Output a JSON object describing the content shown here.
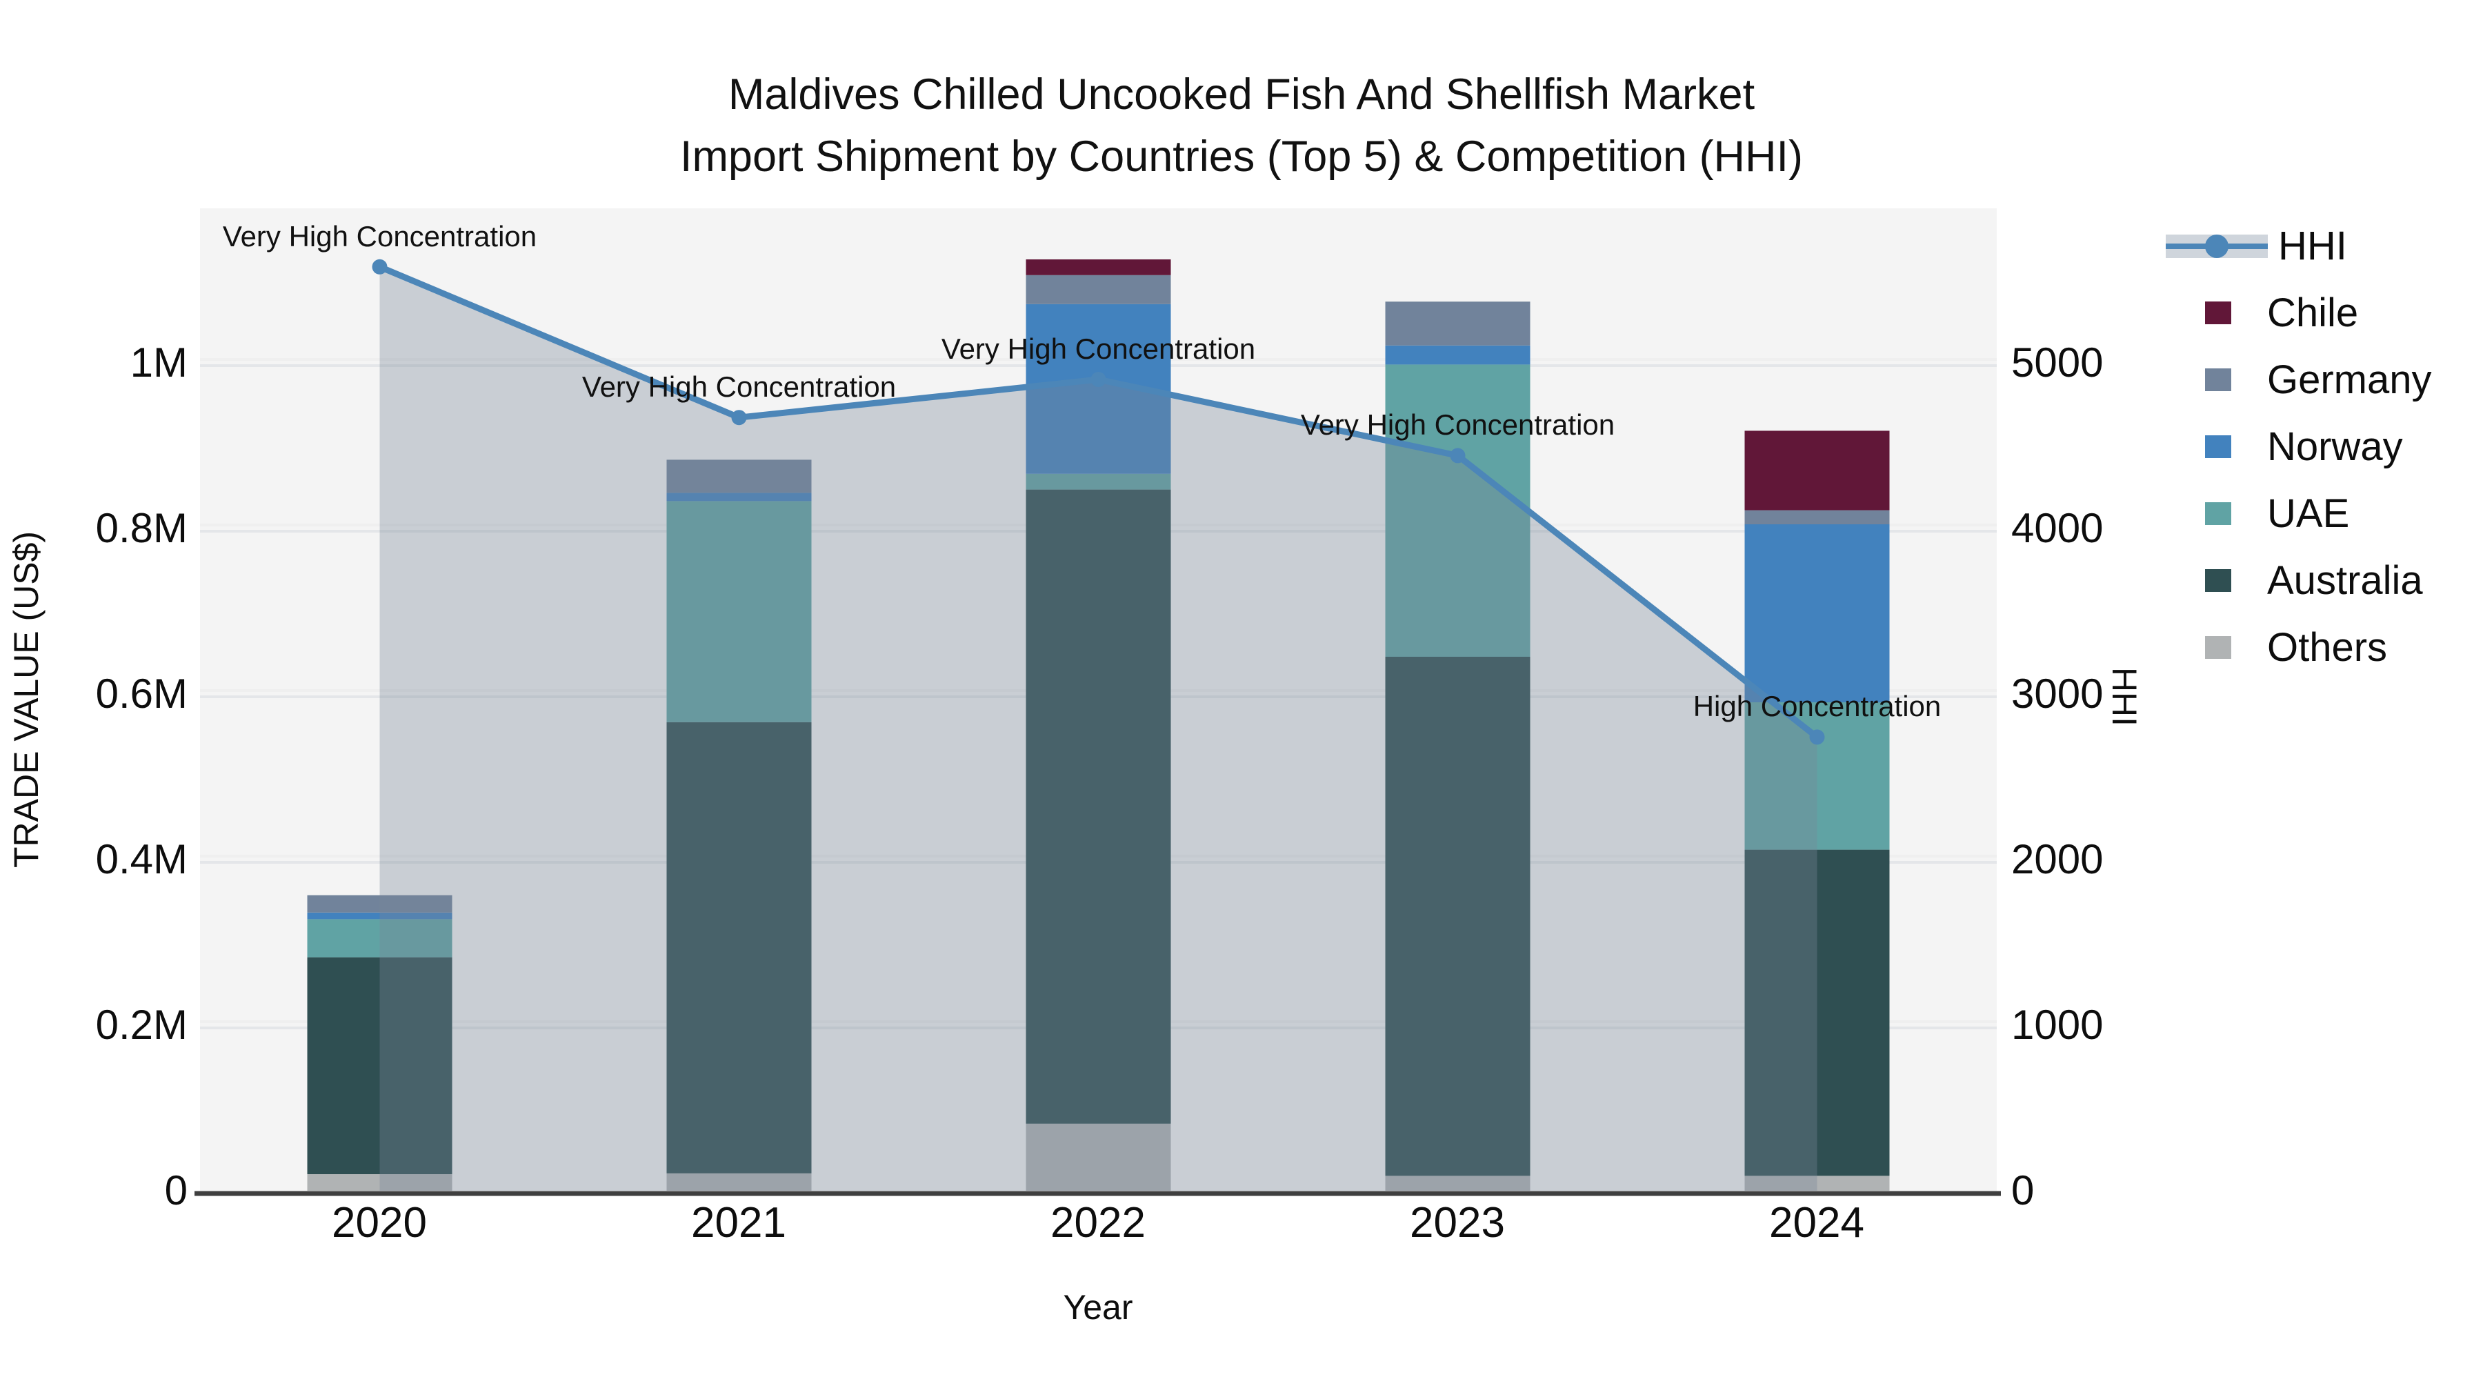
{
  "title": {
    "line1": "Maldives Chilled Uncooked Fish And Shellfish Market",
    "line2": "Import Shipment by Countries (Top 5) & Competition (HHI)"
  },
  "legend": {
    "items": [
      {
        "label": "HHI",
        "color": "#4C86B8"
      },
      {
        "label": "Chile",
        "color": "#611738"
      },
      {
        "label": "Germany",
        "color": "#71839B"
      },
      {
        "label": "Norway",
        "color": "#4282BE"
      },
      {
        "label": "UAE",
        "color": "#60A3A4"
      },
      {
        "label": "Australia",
        "color": "#2F4F52"
      },
      {
        "label": "Others",
        "color": "#B0B3B4"
      }
    ]
  },
  "annotations": [
    {
      "year": "2020",
      "text": "Very High Concentration"
    },
    {
      "year": "2021",
      "text": "Very High Concentration"
    },
    {
      "year": "2022",
      "text": "Very High Concentration"
    },
    {
      "year": "2023",
      "text": "Very High Concentration"
    },
    {
      "year": "2024",
      "text": "High Concentration"
    }
  ],
  "chart_data": {
    "type": "bar",
    "subtype": "stacked-bar-with-line",
    "title": "Maldives Chilled Uncooked Fish And Shellfish Market Import Shipment by Countries (Top 5) & Competition (HHI)",
    "categories": [
      "2020",
      "2021",
      "2022",
      "2023",
      "2024"
    ],
    "bar_value_unit": "million US$",
    "series": [
      {
        "name": "Others",
        "color": "#B0B3B4",
        "values": [
          0.02,
          0.021,
          0.081,
          0.018,
          0.018
        ]
      },
      {
        "name": "Australia",
        "color": "#2F4F52",
        "values": [
          0.262,
          0.545,
          0.766,
          0.627,
          0.394
        ]
      },
      {
        "name": "UAE",
        "color": "#60A3A4",
        "values": [
          0.046,
          0.267,
          0.019,
          0.353,
          0.178
        ]
      },
      {
        "name": "Norway",
        "color": "#4282BE",
        "values": [
          0.008,
          0.01,
          0.205,
          0.023,
          0.215
        ]
      },
      {
        "name": "Germany",
        "color": "#71839B",
        "values": [
          0.021,
          0.04,
          0.035,
          0.053,
          0.017
        ]
      },
      {
        "name": "Chile",
        "color": "#611738",
        "values": [
          0.0,
          0.0,
          0.019,
          0.0,
          0.096
        ]
      }
    ],
    "totals_M": [
      0.357,
      0.883,
      1.125,
      1.074,
      0.918
    ],
    "line": {
      "name": "HHI",
      "color": "#4C86B8",
      "area_fill_color": "#778899",
      "area_fill_opacity": 0.35,
      "values": [
        5580,
        4670,
        4900,
        4440,
        2740
      ]
    },
    "x_axis": {
      "label": "Year",
      "ticks": [
        "2020",
        "2021",
        "2022",
        "2023",
        "2024"
      ]
    },
    "left_axis": {
      "label": "TRADE VALUE (US$)",
      "ticks": [
        "0",
        "0.2M",
        "0.4M",
        "0.6M",
        "0.8M",
        "1M"
      ],
      "range": [
        0,
        1187000
      ]
    },
    "right_axis": {
      "label": "HHI",
      "ticks": [
        "0",
        "1000",
        "2000",
        "3000",
        "4000",
        "5000"
      ],
      "range": [
        0,
        5933
      ]
    },
    "grid": "horizontal",
    "legend_position": "right",
    "plot_background": "#F4F4F4",
    "axis_line_color": "#3F3F3F",
    "gridline_color": "#E9E9E9"
  }
}
